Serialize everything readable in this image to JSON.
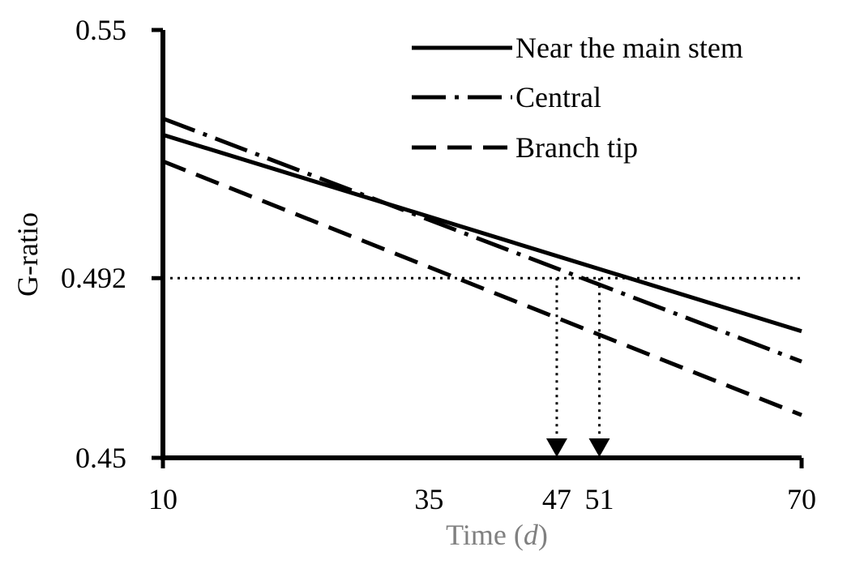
{
  "chart_data": {
    "type": "line",
    "xlabel": "Time",
    "xlabel_unit": "d",
    "ylabel": "G-ratio",
    "xlim": [
      10,
      70
    ],
    "ylim": [
      0.45,
      0.55
    ],
    "x_ticks": [
      "10",
      "35",
      "47",
      "51",
      "70"
    ],
    "y_ticks": [
      "0.45",
      "0.492",
      "0.55"
    ],
    "grid": false,
    "legend_position": "top-right",
    "series": [
      {
        "name": "Near the main stem",
        "style": "solid",
        "x": [
          10,
          70
        ],
        "y": [
          0.5255,
          0.4796
        ]
      },
      {
        "name": "Central",
        "style": "dash-dot",
        "x": [
          10,
          70
        ],
        "y": [
          0.5293,
          0.4725
        ]
      },
      {
        "name": "Branch tip",
        "style": "dashed",
        "x": [
          10,
          70
        ],
        "y": [
          0.5193,
          0.46
        ]
      }
    ],
    "reference_line": {
      "y": 0.492,
      "style": "dotted"
    },
    "markers": [
      {
        "x": 47,
        "y": 0.492,
        "style": "dotted-arrow-down"
      },
      {
        "x": 51,
        "y": 0.492,
        "style": "dotted-arrow-down"
      }
    ]
  },
  "colors": {
    "axis": "#000000",
    "line": "#000000",
    "axis_title": "#808080"
  }
}
